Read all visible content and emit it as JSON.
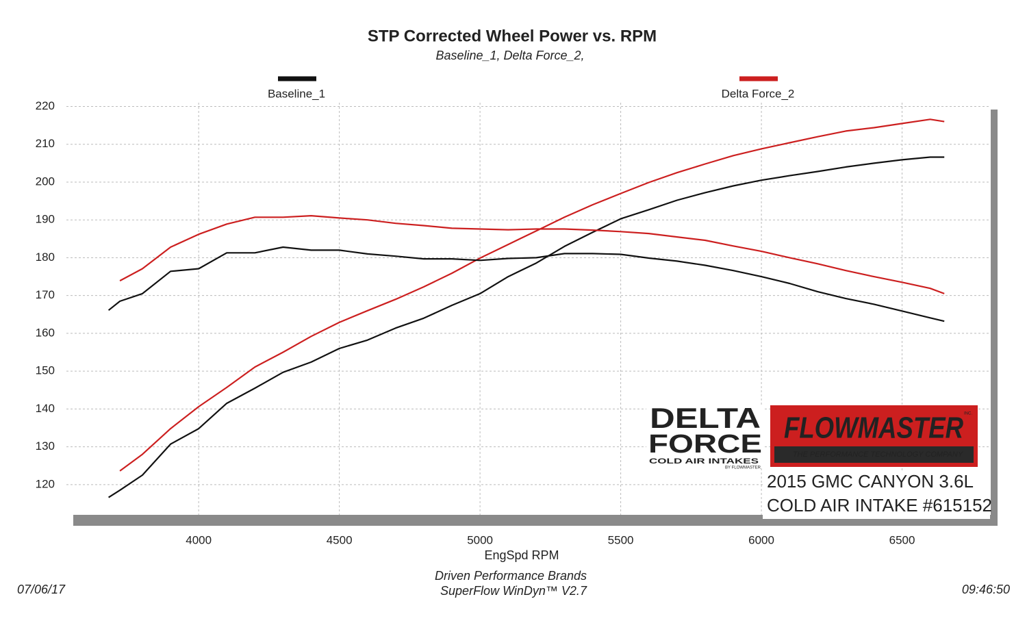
{
  "chart_data": {
    "type": "line",
    "title": "STP Corrected Wheel Power vs. RPM",
    "subtitle": "Baseline_1, Delta Force_2,",
    "x_label": "EngSpd  RPM",
    "x": [
      3680,
      3720,
      3800,
      3900,
      4000,
      4100,
      4200,
      4300,
      4400,
      4500,
      4600,
      4700,
      4800,
      4900,
      5000,
      5100,
      5200,
      5300,
      5400,
      5500,
      5600,
      5700,
      5800,
      5900,
      6000,
      6100,
      6200,
      6300,
      6400,
      6500,
      6600,
      6650
    ],
    "series": [
      {
        "name": "Baseline_1",
        "color": "#111111",
        "values": [
          116.6,
          118.5,
          122.5,
          130.7,
          134.8,
          141.5,
          145.5,
          149.7,
          152.4,
          156,
          158.2,
          161.4,
          164,
          167.4,
          170.5,
          175,
          178.6,
          183,
          186.7,
          190.3,
          192.7,
          195.2,
          197.2,
          199,
          200.5,
          201.7,
          202.8,
          204,
          205,
          205.9,
          206.6,
          206.6
        ]
      },
      {
        "name": "Delta Force_2",
        "color": "#cc1f1f",
        "values": [
          null,
          123.6,
          128,
          134.8,
          140.6,
          145.7,
          151.1,
          155,
          159.2,
          162.9,
          166,
          169,
          172.3,
          175.9,
          179.9,
          183.5,
          187.1,
          190.7,
          194,
          197,
          199.9,
          202.5,
          204.8,
          207,
          208.8,
          210.4,
          212,
          213.5,
          214.4,
          215.5,
          216.6,
          216
        ]
      },
      {
        "color": "#111111",
        "values": [
          166.1,
          168.5,
          170.5,
          176.4,
          177.1,
          181.3,
          181.3,
          182.8,
          182,
          182,
          181,
          180.4,
          179.7,
          179.7,
          179.3,
          179.8,
          180,
          181.1,
          181.1,
          180.9,
          179.9,
          179.1,
          178,
          176.6,
          175,
          173.2,
          171,
          169.2,
          167.7,
          165.9,
          164.1,
          163.2
        ]
      },
      {
        "color": "#cc1f1f",
        "values": [
          null,
          173.9,
          177.1,
          182.8,
          186.2,
          188.9,
          190.7,
          190.7,
          191.1,
          190.5,
          190,
          189.1,
          188.5,
          187.8,
          187.6,
          187.4,
          187.6,
          187.6,
          187.3,
          186.9,
          186.4,
          185.5,
          184.6,
          183.1,
          181.7,
          180,
          178.4,
          176.6,
          175,
          173.5,
          171.9,
          170.5
        ]
      }
    ],
    "xlim": [
      3530,
      6815
    ],
    "xticks": [
      4000,
      4500,
      5000,
      5500,
      6000,
      6500
    ],
    "ylim": [
      112,
      221
    ],
    "yticks": [
      120,
      130,
      140,
      150,
      160,
      170,
      180,
      190,
      200,
      210,
      220
    ],
    "grid": true,
    "logo_left": {
      "line1": "DELTA",
      "line2": "FORCE",
      "line3": "COLD AIR INTAKES",
      "line4": "BY FLOWMASTER"
    },
    "logo_right": {
      "brand": "FLOWMASTER",
      "mark": "INC.",
      "tagline": "THE PERFORMANCE TECHNOLOGY COMPANY"
    },
    "caption": [
      "2015 GMC CANYON 3.6L",
      "COLD AIR INTAKE #615152"
    ],
    "footer": [
      "Driven Performance Brands",
      "SuperFlow WinDyn™  V2.7"
    ],
    "date": "07/06/17",
    "time": "09:46:50"
  }
}
